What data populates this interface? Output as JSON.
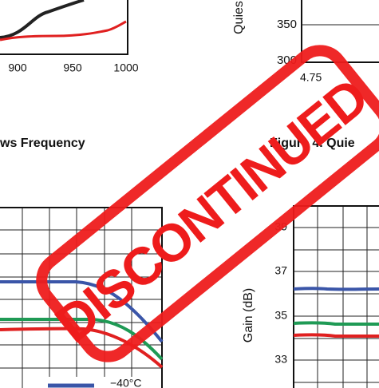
{
  "top_left_chart": {
    "x_ticks": [
      "900",
      "950",
      "1000"
    ]
  },
  "caption_left": "ws Frequency",
  "top_right_chart": {
    "y_label": "Quies",
    "y_ticks": [
      "350",
      "300"
    ],
    "x_tick": "4.75"
  },
  "caption_right": "Figure 4. Quie",
  "bottom_left_chart": {
    "legend": [
      "−40°C"
    ]
  },
  "bottom_right_chart": {
    "y_label": "Gain  (dB)",
    "y_ticks": [
      "39",
      "37",
      "35",
      "33"
    ]
  },
  "stamp": "DISCONTINUED"
}
